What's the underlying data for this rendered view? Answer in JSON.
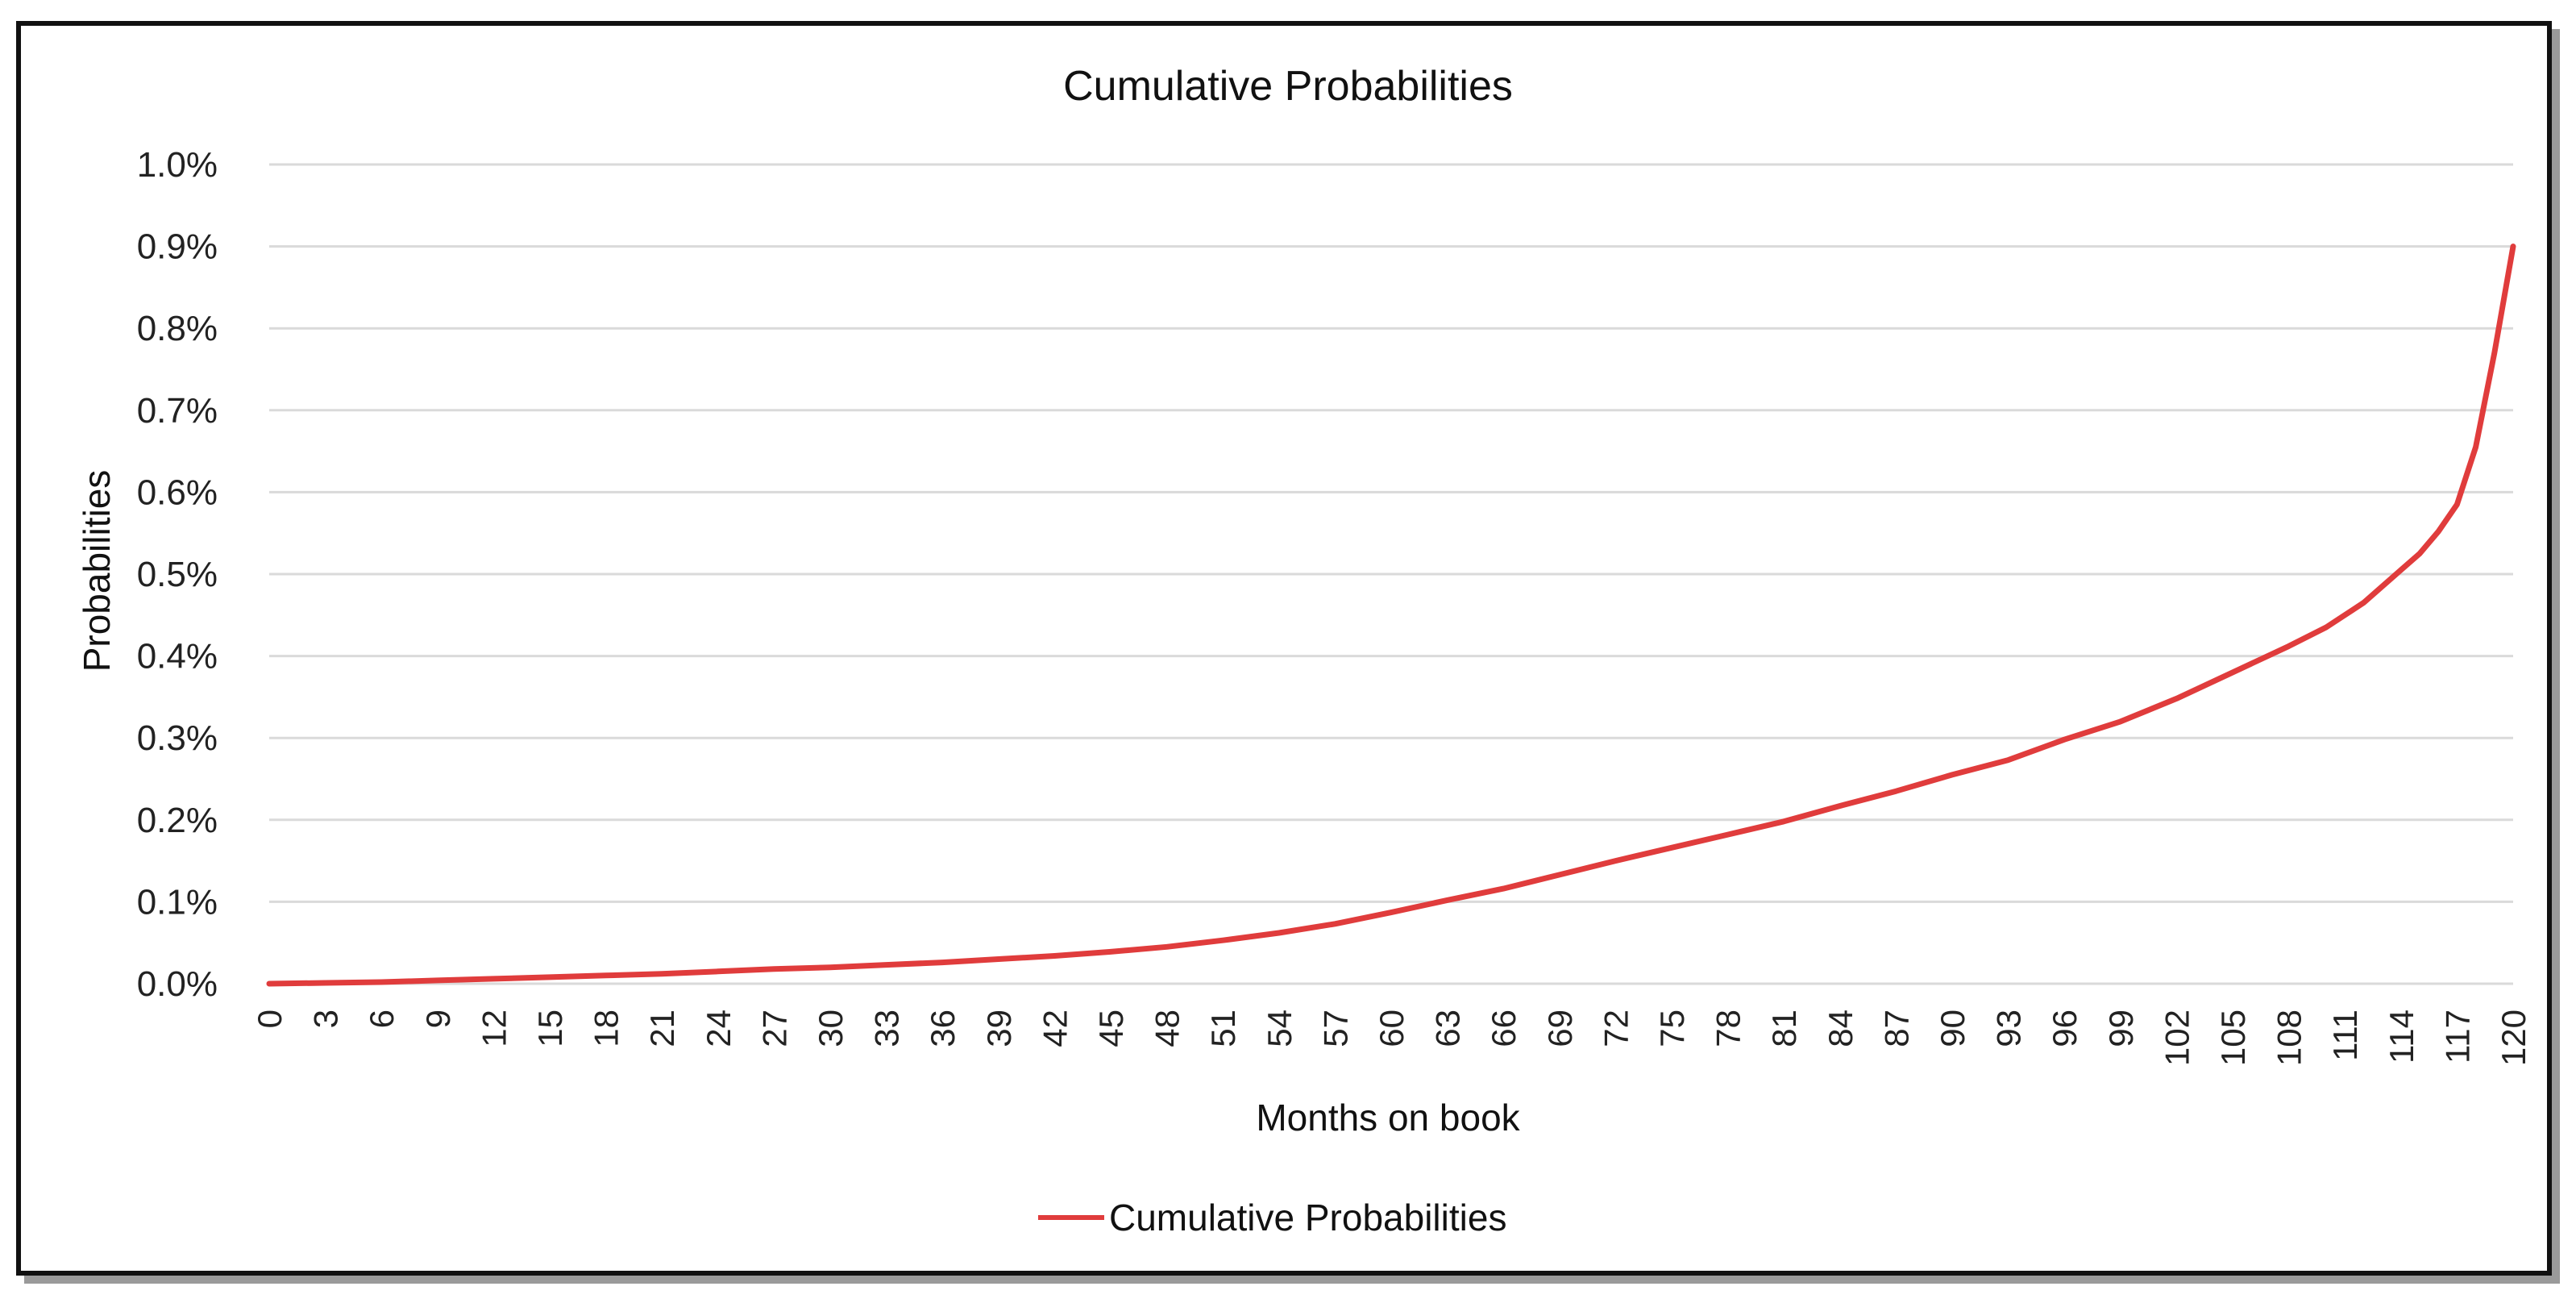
{
  "chart_data": {
    "type": "line",
    "title": "Cumulative Probabilities",
    "xlabel": "Months on book",
    "ylabel": "Probabilities",
    "xlim": [
      0,
      120
    ],
    "ylim": [
      0,
      0.01
    ],
    "y_ticks": [
      0,
      0.001,
      0.002,
      0.003,
      0.004,
      0.005,
      0.006,
      0.007,
      0.008,
      0.009,
      0.01
    ],
    "y_tick_labels": [
      "0.0%",
      "0.1%",
      "0.2%",
      "0.3%",
      "0.4%",
      "0.5%",
      "0.6%",
      "0.7%",
      "0.8%",
      "0.9%",
      "1.0%"
    ],
    "x_ticks": [
      0,
      3,
      6,
      9,
      12,
      15,
      18,
      21,
      24,
      27,
      30,
      33,
      36,
      39,
      42,
      45,
      48,
      51,
      54,
      57,
      60,
      63,
      66,
      69,
      72,
      75,
      78,
      81,
      84,
      87,
      90,
      93,
      96,
      99,
      102,
      105,
      108,
      111,
      114,
      117,
      120
    ],
    "x_tick_labels": [
      "0",
      "3",
      "6",
      "9",
      "12",
      "15",
      "18",
      "21",
      "24",
      "27",
      "30",
      "33",
      "36",
      "39",
      "42",
      "45",
      "48",
      "51",
      "54",
      "57",
      "60",
      "63",
      "66",
      "69",
      "72",
      "75",
      "78",
      "81",
      "84",
      "87",
      "90",
      "93",
      "96",
      "99",
      "102",
      "105",
      "108",
      "111",
      "114",
      "117",
      "120"
    ],
    "grid": "horizontal",
    "legend": "bottom-center",
    "color": "#e03c3c",
    "series": [
      {
        "name": "Cumulative Probabilities",
        "x": [
          0,
          3,
          6,
          9,
          12,
          15,
          18,
          21,
          24,
          27,
          30,
          33,
          36,
          39,
          42,
          45,
          48,
          51,
          54,
          57,
          60,
          63,
          66,
          69,
          72,
          75,
          78,
          81,
          84,
          87,
          90,
          93,
          96,
          99,
          102,
          105,
          108,
          110,
          112,
          114,
          115,
          116,
          117,
          118,
          119,
          120
        ],
        "values": [
          0,
          1e-05,
          2e-05,
          4e-05,
          6e-05,
          8e-05,
          0.0001,
          0.00012,
          0.00015,
          0.00018,
          0.0002,
          0.00023,
          0.00026,
          0.0003,
          0.00034,
          0.00039,
          0.00045,
          0.00053,
          0.00062,
          0.00073,
          0.00087,
          0.00102,
          0.00116,
          0.00133,
          0.0015,
          0.00166,
          0.00182,
          0.00198,
          0.00217,
          0.00235,
          0.00255,
          0.00273,
          0.00298,
          0.0032,
          0.00348,
          0.0038,
          0.00412,
          0.00435,
          0.00465,
          0.00505,
          0.00525,
          0.00552,
          0.00585,
          0.00655,
          0.0077,
          0.009
        ]
      }
    ]
  }
}
